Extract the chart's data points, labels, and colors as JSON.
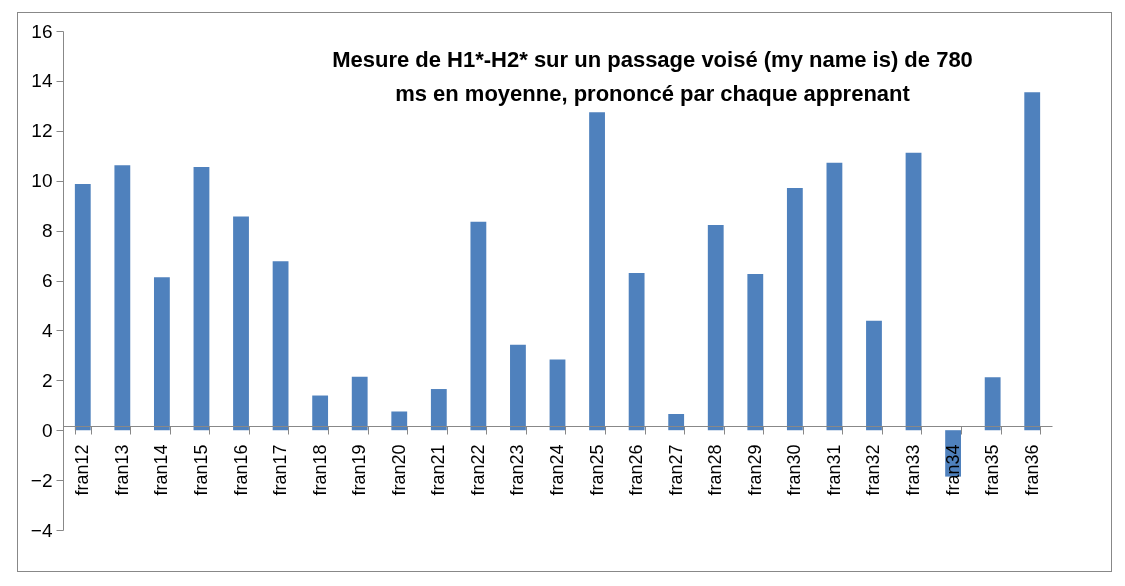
{
  "chart_data": {
    "type": "bar",
    "title": "Mesure de H1*-H2* sur un passage voisé  (my name is) de 780 ms en moyenne, prononcé par chaque apprenant",
    "categories": [
      "fran12",
      "fran13",
      "fran14",
      "fran15",
      "fran16",
      "fran17",
      "fran18",
      "fran19",
      "fran20",
      "fran21",
      "fran22",
      "fran23",
      "fran24",
      "fran25",
      "fran26",
      "fran27",
      "fran28",
      "fran29",
      "fran30",
      "fran31",
      "fran32",
      "fran33",
      "fran34",
      "fran35",
      "fran36"
    ],
    "values": [
      9.87,
      10.62,
      6.13,
      10.55,
      8.57,
      6.77,
      1.39,
      2.14,
      0.75,
      1.65,
      8.35,
      3.42,
      2.83,
      12.74,
      6.3,
      0.65,
      8.22,
      6.26,
      9.71,
      10.72,
      4.39,
      11.12,
      -1.86,
      2.12,
      13.55
    ],
    "color": "#4f81bd",
    "ylim": [
      -4,
      16
    ],
    "yticks": [
      -4,
      -2,
      0,
      2,
      4,
      6,
      8,
      10,
      12,
      14,
      16
    ],
    "grid": false
  }
}
